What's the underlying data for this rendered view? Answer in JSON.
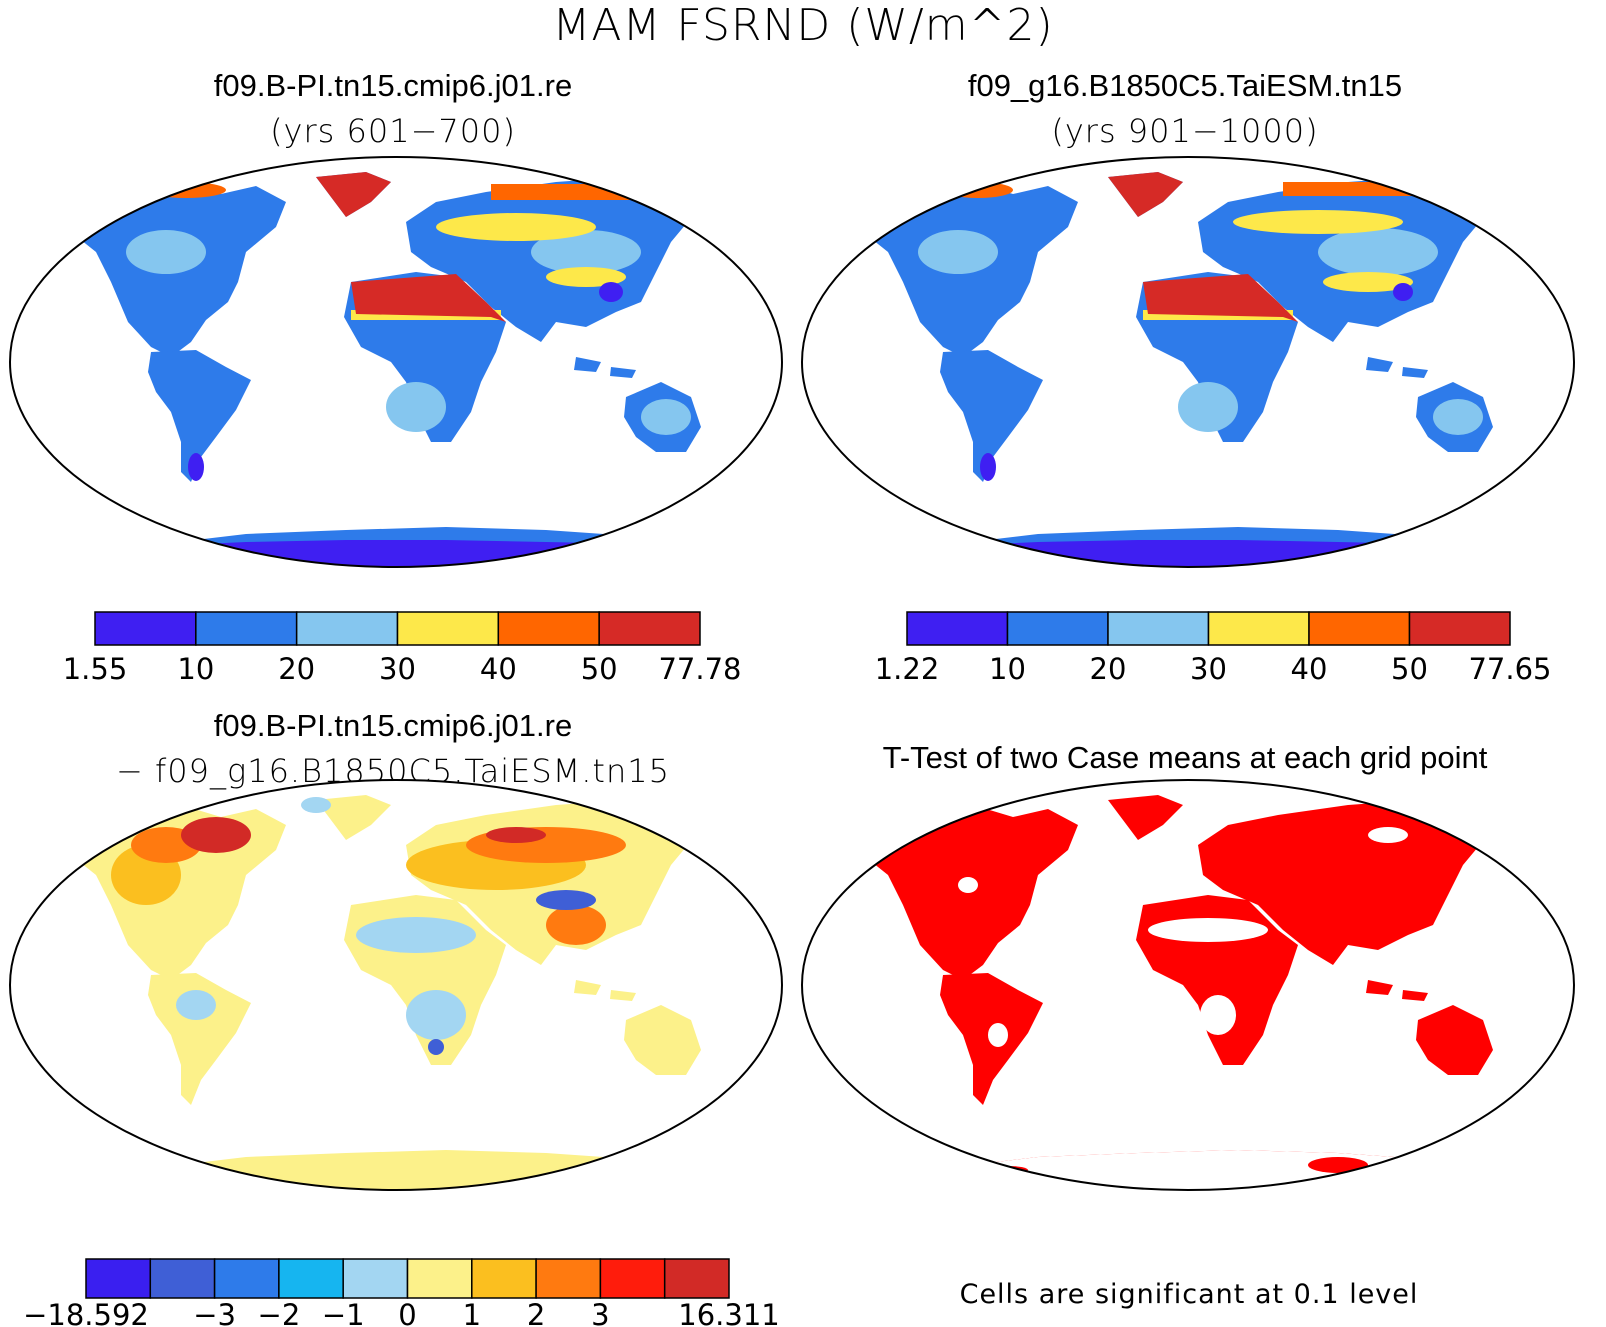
{
  "figure_title": "MAM FSRND (W/m^2)",
  "panels": [
    {
      "title": "f09.B-PI.tn15.cmip6.j01.re",
      "subtitle": "(yrs 601−700)"
    },
    {
      "title": "f09_g16.B1850C5.TaiESM.tn15",
      "subtitle": "(yrs 901−1000)"
    },
    {
      "title": "f09.B-PI.tn15.cmip6.j01.re",
      "subtitle": "− f09_g16.B1850C5.TaiESM.tn15"
    },
    {
      "title": "T-Test of two Case means at each grid point",
      "subtitle": ""
    }
  ],
  "significance_note": "Cells are significant at 0.1 level",
  "colorbars": [
    {
      "labels": [
        "1.55",
        "10",
        "20",
        "30",
        "40",
        "50",
        "77.78"
      ],
      "colors": [
        "#3f1ff2",
        "#2e7bea",
        "#85c6ef",
        "#fde84a",
        "#ff6600",
        "#d62a26"
      ]
    },
    {
      "labels": [
        "1.22",
        "10",
        "20",
        "30",
        "40",
        "50",
        "77.65"
      ],
      "colors": [
        "#3f1ff2",
        "#2e7bea",
        "#85c6ef",
        "#fde84a",
        "#ff6600",
        "#d62a26"
      ]
    },
    {
      "labels": [
        "−18.592",
        "−3",
        "−2",
        "−1",
        "0",
        "1",
        "2",
        "3",
        "16.311"
      ],
      "colors": [
        "#3a1ff0",
        "#3f5fd6",
        "#2e7bea",
        "#16b5f0",
        "#a3d6f2",
        "#fcf18a",
        "#fbbf1f",
        "#ff7a10",
        "#ff1c0c",
        "#d22a26"
      ]
    }
  ],
  "map_colors": {
    "ocean": "#ffffff",
    "significant": "#ff0000",
    "outline": "#000000"
  }
}
